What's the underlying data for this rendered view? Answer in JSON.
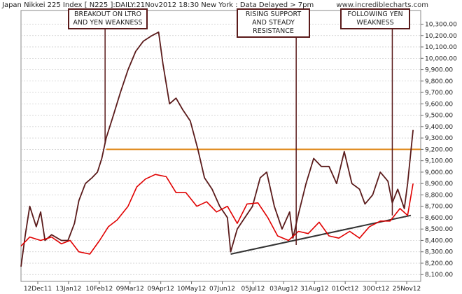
{
  "header": {
    "title": "Japan Nikkei 225 Index [ N225 ]:DAILY:21Nov2012 18:30 New York : Data Delayed > 7pm",
    "watermark": "www.incrediblecharts.com"
  },
  "colors": {
    "price_line": "#5a1a1a",
    "secondary_line": "#e00000",
    "horizontal_level": "#e08a1c",
    "trendline": "#333333",
    "annotation_border": "#5a1a1a",
    "grid": "#c8c8c8"
  },
  "chart_data": {
    "type": "line",
    "title": "Japan Nikkei 225 Index [ N225 ]:DAILY:21Nov2012 18:30 New York : Data Delayed > 7pm",
    "x_tick_labels": [
      "12Dec11",
      "13Jan12",
      "10Feb12",
      "09Mar12",
      "09Apr12",
      "10May12",
      "07Jun12",
      "05Jul12",
      "03Aug12",
      "31Aug12",
      "01Oct12",
      "30Oct12",
      "25Nov12"
    ],
    "y_tick_labels": [
      "8,100.00",
      "8,200.00",
      "8,300.00",
      "8,400.00",
      "8,500.00",
      "8,600.00",
      "8,700.00",
      "8,800.00",
      "8,900.00",
      "9,000.00",
      "9,100.00",
      "9,200.00",
      "9,300.00",
      "9,400.00",
      "9,500.00",
      "9,600.00",
      "9,700.00",
      "9,800.00",
      "9,900.00",
      "10,000.00",
      "10,100.00",
      "10,200.00",
      "10,300.00"
    ],
    "ylim": [
      8040,
      10420
    ],
    "xlim": [
      "2011-11-28",
      "2012-11-28"
    ],
    "grid": true,
    "axis_side": "right",
    "series": [
      {
        "x": [
          "2011-11-28",
          "2011-12-02",
          "2011-12-06",
          "2011-12-12",
          "2011-12-16",
          "2011-12-20",
          "2011-12-26",
          "2012-01-04",
          "2012-01-10",
          "2012-01-16",
          "2012-01-20",
          "2012-01-26",
          "2012-02-01",
          "2012-02-06",
          "2012-02-10",
          "2012-02-14",
          "2012-02-20",
          "2012-02-27",
          "2012-03-05",
          "2012-03-12",
          "2012-03-19",
          "2012-03-27",
          "2012-04-02",
          "2012-04-06",
          "2012-04-12",
          "2012-04-18",
          "2012-04-24",
          "2012-05-01",
          "2012-05-08",
          "2012-05-14",
          "2012-05-21",
          "2012-05-28",
          "2012-06-04",
          "2012-06-07",
          "2012-06-13",
          "2012-06-20",
          "2012-06-27",
          "2012-07-04",
          "2012-07-10",
          "2012-07-17",
          "2012-07-24",
          "2012-07-31",
          "2012-08-03",
          "2012-08-08",
          "2012-08-15",
          "2012-08-22",
          "2012-08-29",
          "2012-09-05",
          "2012-09-12",
          "2012-09-19",
          "2012-09-26",
          "2012-10-03",
          "2012-10-08",
          "2012-10-15",
          "2012-10-22",
          "2012-10-29",
          "2012-11-02",
          "2012-11-07",
          "2012-11-13",
          "2012-11-16",
          "2012-11-21"
        ],
        "values": [
          8170,
          8450,
          8700,
          8520,
          8650,
          8400,
          8450,
          8400,
          8400,
          8550,
          8750,
          8900,
          8950,
          9000,
          9120,
          9300,
          9480,
          9700,
          9900,
          10060,
          10150,
          10200,
          10230,
          9950,
          9600,
          9650,
          9550,
          9450,
          9200,
          8950,
          8850,
          8700,
          8600,
          8300,
          8500,
          8600,
          8700,
          8950,
          9000,
          8700,
          8500,
          8650,
          8420,
          8630,
          8900,
          9120,
          9050,
          9050,
          8900,
          9180,
          8900,
          8850,
          8720,
          8800,
          9000,
          8920,
          8730,
          8850,
          8680,
          8900,
          9370
        ]
      },
      {
        "x": [
          "2011-11-28",
          "2011-12-06",
          "2011-12-16",
          "2011-12-26",
          "2012-01-04",
          "2012-01-12",
          "2012-01-20",
          "2012-01-30",
          "2012-02-08",
          "2012-02-16",
          "2012-02-24",
          "2012-03-05",
          "2012-03-13",
          "2012-03-21",
          "2012-03-30",
          "2012-04-09",
          "2012-04-18",
          "2012-04-27",
          "2012-05-07",
          "2012-05-16",
          "2012-05-25",
          "2012-06-04",
          "2012-06-13",
          "2012-06-22",
          "2012-07-02",
          "2012-07-11",
          "2012-07-20",
          "2012-07-30",
          "2012-08-08",
          "2012-08-17",
          "2012-08-27",
          "2012-09-05",
          "2012-09-14",
          "2012-09-24",
          "2012-10-03",
          "2012-10-12",
          "2012-10-22",
          "2012-10-31",
          "2012-11-09",
          "2012-11-16",
          "2012-11-21"
        ],
        "values": [
          8350,
          8430,
          8400,
          8430,
          8370,
          8400,
          8300,
          8280,
          8400,
          8520,
          8580,
          8700,
          8870,
          8940,
          8980,
          8960,
          8820,
          8820,
          8700,
          8740,
          8650,
          8700,
          8550,
          8720,
          8730,
          8600,
          8440,
          8400,
          8480,
          8460,
          8560,
          8440,
          8420,
          8480,
          8420,
          8520,
          8570,
          8570,
          8680,
          8620,
          8900
        ]
      }
    ],
    "reference_lines": [
      {
        "type": "horizontal",
        "y": 9200
      },
      {
        "type": "trend",
        "x": [
          "2012-06-07",
          "2012-11-19"
        ],
        "y": [
          8280,
          8620
        ]
      }
    ],
    "annotations": [
      {
        "text": "BREAKOUT ON LTRO\nAND YEN WEAKNESS",
        "x": "2012-02-13",
        "y": 9250
      },
      {
        "text": "RISING SUPPORT\nAND STEADY\nRESISTANCE",
        "x": "2012-08-06",
        "y": 8360
      },
      {
        "text": "FOLLOWING YEN\nWEAKNESS",
        "x": "2012-11-02",
        "y": 8620
      }
    ]
  }
}
